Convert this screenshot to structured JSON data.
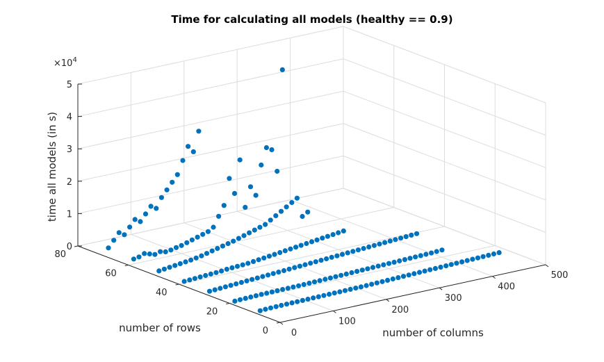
{
  "chart_data": {
    "type": "scatter",
    "title": "Time for calculating all models (healthy == 0.9)",
    "xlabel": "number of columns",
    "ylabel": "number of rows",
    "zlabel": "time all models (in s)",
    "xlim": [
      0,
      500
    ],
    "ylim": [
      0,
      80
    ],
    "zlim": [
      0,
      50000
    ],
    "xticks": [
      0,
      100,
      200,
      300,
      400,
      500
    ],
    "yticks": [
      0,
      20,
      40,
      60,
      80
    ],
    "zticks": [
      0,
      1,
      2,
      3,
      4,
      5
    ],
    "zexponent": "×10",
    "zexponent_power": "4",
    "grid": true,
    "marker_color": "#0072bd",
    "rows": [
      10,
      20,
      30,
      40,
      50,
      60,
      70
    ],
    "columns_start": 10,
    "columns_step": 10,
    "series": [
      {
        "row": 10,
        "values": [
          300,
          400,
          450,
          500,
          520,
          550,
          580,
          600,
          620,
          650,
          680,
          700,
          720,
          750,
          780,
          800,
          820,
          850,
          880,
          900,
          950,
          1000,
          1050,
          1100,
          1150,
          1200,
          1250,
          1300,
          1350,
          1400,
          1450,
          1500,
          1550,
          1600,
          1650,
          1700,
          1750,
          1800,
          1850,
          1900,
          1950,
          2000,
          2050,
          2100,
          2150,
          2200
        ]
      },
      {
        "row": 20,
        "values": [
          300,
          400,
          450,
          500,
          550,
          600,
          620,
          650,
          680,
          700,
          720,
          750,
          780,
          800,
          850,
          900,
          950,
          1000,
          1050,
          1100,
          1150,
          1200,
          1250,
          1300,
          1350,
          1400,
          1450,
          1500,
          1550,
          1600,
          1650,
          1700,
          1750,
          1800,
          1850,
          1900,
          1950,
          2000,
          2100,
          2200
        ]
      },
      {
        "row": 30,
        "values": [
          400,
          500,
          600,
          700,
          800,
          900,
          1000,
          1100,
          1200,
          1300,
          1400,
          1500,
          1600,
          1700,
          1800,
          1900,
          2000,
          2100,
          2200,
          2300,
          2400,
          2500,
          2600,
          2700,
          2800,
          2900,
          3000,
          3100,
          3200,
          3300,
          3400,
          3500,
          3600,
          3700,
          3800,
          3900,
          4000,
          4100,
          4200,
          4300
        ]
      },
      {
        "row": 40,
        "values": [
          500,
          600,
          700,
          800,
          900,
          1000,
          1100,
          1200,
          1400,
          1500,
          1600,
          1700,
          1800,
          2000,
          2200,
          2400,
          2600,
          2800,
          3000,
          3200,
          3400,
          3600,
          3800,
          4000,
          4200,
          4400,
          4600,
          4800,
          5000,
          5200,
          5400
        ]
      },
      {
        "row": 50,
        "values": [
          800,
          1000,
          1200,
          1400,
          1600,
          1800,
          2000,
          2300,
          2600,
          3000,
          3400,
          3800,
          4200,
          4600,
          5000,
          5500,
          6000,
          6500,
          7000,
          7500,
          8000,
          9000,
          10000,
          11000,
          12000,
          13000,
          14000,
          8000,
          9000
        ]
      },
      {
        "row": 60,
        "values": [
          1500,
          1800,
          2500,
          2000,
          1500,
          2000,
          1600,
          1800,
          2200,
          2500,
          3000,
          3500,
          4000,
          4500,
          5000,
          6000,
          9000,
          12000,
          20000,
          15000,
          25000,
          10000,
          16000,
          13000,
          22000,
          27000,
          26000,
          19000,
          50000
        ]
      },
      {
        "row": 70,
        "values": [
          2000,
          4000,
          6000,
          5000,
          7000,
          9000,
          8000,
          10000,
          12000,
          11000,
          14000,
          16000,
          18000,
          20000,
          24000,
          28000,
          26000,
          32000
        ]
      }
    ]
  }
}
